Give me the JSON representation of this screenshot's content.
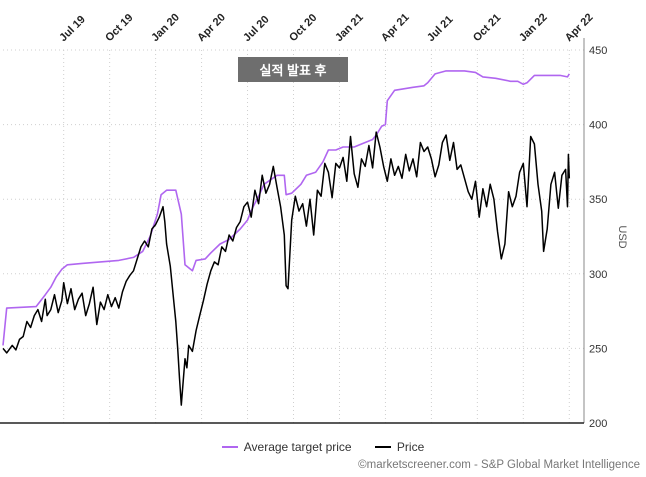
{
  "chart_data": {
    "type": "line",
    "yaxis_title": "USD",
    "ylim": [
      200,
      450
    ],
    "yticks": [
      200,
      250,
      300,
      350,
      400,
      450
    ],
    "grid": true,
    "legend_position": "bottom",
    "annotation": "실적 발표 후",
    "xticks": [
      {
        "label": "Jul 19",
        "t": 2019.5
      },
      {
        "label": "Oct 19",
        "t": 2019.75
      },
      {
        "label": "Jan 20",
        "t": 2020.0
      },
      {
        "label": "Apr 20",
        "t": 2020.25
      },
      {
        "label": "Jul 20",
        "t": 2020.5
      },
      {
        "label": "Oct 20",
        "t": 2020.75
      },
      {
        "label": "Jan 21",
        "t": 2021.0
      },
      {
        "label": "Apr 21",
        "t": 2021.25
      },
      {
        "label": "Jul 21",
        "t": 2021.5
      },
      {
        "label": "Oct 21",
        "t": 2021.75
      },
      {
        "label": "Jan 22",
        "t": 2022.0
      },
      {
        "label": "Apr 22",
        "t": 2022.25
      }
    ],
    "series": [
      {
        "name": "Average target price",
        "color": "#b066f0",
        "points": [
          [
            2019.17,
            252
          ],
          [
            2019.19,
            277
          ],
          [
            2019.35,
            278
          ],
          [
            2019.4,
            286
          ],
          [
            2019.43,
            291
          ],
          [
            2019.46,
            298
          ],
          [
            2019.49,
            303
          ],
          [
            2019.52,
            306
          ],
          [
            2019.6,
            307
          ],
          [
            2019.7,
            308
          ],
          [
            2019.8,
            309
          ],
          [
            2019.88,
            311
          ],
          [
            2019.93,
            315
          ],
          [
            2019.97,
            325
          ],
          [
            2020.01,
            340
          ],
          [
            2020.03,
            353
          ],
          [
            2020.06,
            356
          ],
          [
            2020.11,
            356
          ],
          [
            2020.14,
            340
          ],
          [
            2020.16,
            306
          ],
          [
            2020.2,
            302
          ],
          [
            2020.22,
            309
          ],
          [
            2020.27,
            310
          ],
          [
            2020.3,
            314
          ],
          [
            2020.35,
            320
          ],
          [
            2020.4,
            323
          ],
          [
            2020.46,
            330
          ],
          [
            2020.5,
            336
          ],
          [
            2020.53,
            345
          ],
          [
            2020.56,
            352
          ],
          [
            2020.59,
            360
          ],
          [
            2020.66,
            366
          ],
          [
            2020.7,
            366
          ],
          [
            2020.71,
            353
          ],
          [
            2020.74,
            354
          ],
          [
            2020.79,
            360
          ],
          [
            2020.82,
            366
          ],
          [
            2020.87,
            368
          ],
          [
            2020.91,
            375
          ],
          [
            2020.94,
            383
          ],
          [
            2020.98,
            383
          ],
          [
            2021.02,
            385
          ],
          [
            2021.08,
            385
          ],
          [
            2021.12,
            387
          ],
          [
            2021.18,
            390
          ],
          [
            2021.2,
            393
          ],
          [
            2021.23,
            399
          ],
          [
            2021.25,
            400
          ],
          [
            2021.26,
            416
          ],
          [
            2021.3,
            423
          ],
          [
            2021.4,
            425
          ],
          [
            2021.46,
            426
          ],
          [
            2021.48,
            428
          ],
          [
            2021.52,
            434
          ],
          [
            2021.58,
            436
          ],
          [
            2021.68,
            436
          ],
          [
            2021.74,
            435
          ],
          [
            2021.78,
            432
          ],
          [
            2021.85,
            431
          ],
          [
            2021.93,
            429
          ],
          [
            2021.97,
            429
          ],
          [
            2022.0,
            427
          ],
          [
            2022.02,
            428
          ],
          [
            2022.06,
            433
          ],
          [
            2022.2,
            433
          ],
          [
            2022.24,
            432
          ],
          [
            2022.25,
            434
          ]
        ]
      },
      {
        "name": "Price",
        "color": "#000000",
        "points": [
          [
            2019.17,
            250
          ],
          [
            2019.19,
            247
          ],
          [
            2019.22,
            252
          ],
          [
            2019.24,
            249
          ],
          [
            2019.26,
            256
          ],
          [
            2019.28,
            258
          ],
          [
            2019.3,
            268
          ],
          [
            2019.32,
            264
          ],
          [
            2019.34,
            272
          ],
          [
            2019.36,
            276
          ],
          [
            2019.38,
            268
          ],
          [
            2019.4,
            283
          ],
          [
            2019.41,
            272
          ],
          [
            2019.43,
            276
          ],
          [
            2019.45,
            286
          ],
          [
            2019.47,
            274
          ],
          [
            2019.49,
            282
          ],
          [
            2019.5,
            294
          ],
          [
            2019.52,
            280
          ],
          [
            2019.54,
            290
          ],
          [
            2019.56,
            276
          ],
          [
            2019.58,
            283
          ],
          [
            2019.6,
            287
          ],
          [
            2019.62,
            272
          ],
          [
            2019.64,
            280
          ],
          [
            2019.66,
            291
          ],
          [
            2019.68,
            266
          ],
          [
            2019.7,
            281
          ],
          [
            2019.72,
            276
          ],
          [
            2019.74,
            286
          ],
          [
            2019.76,
            278
          ],
          [
            2019.78,
            284
          ],
          [
            2019.8,
            277
          ],
          [
            2019.82,
            288
          ],
          [
            2019.84,
            295
          ],
          [
            2019.86,
            299
          ],
          [
            2019.88,
            302
          ],
          [
            2019.9,
            310
          ],
          [
            2019.92,
            318
          ],
          [
            2019.94,
            322
          ],
          [
            2019.96,
            318
          ],
          [
            2019.98,
            330
          ],
          [
            2020.0,
            333
          ],
          [
            2020.02,
            338
          ],
          [
            2020.04,
            345
          ],
          [
            2020.05,
            335
          ],
          [
            2020.06,
            320
          ],
          [
            2020.08,
            305
          ],
          [
            2020.1,
            280
          ],
          [
            2020.11,
            268
          ],
          [
            2020.12,
            250
          ],
          [
            2020.13,
            230
          ],
          [
            2020.14,
            212
          ],
          [
            2020.15,
            228
          ],
          [
            2020.16,
            243
          ],
          [
            2020.17,
            237
          ],
          [
            2020.18,
            252
          ],
          [
            2020.2,
            248
          ],
          [
            2020.22,
            262
          ],
          [
            2020.24,
            272
          ],
          [
            2020.26,
            282
          ],
          [
            2020.28,
            293
          ],
          [
            2020.3,
            302
          ],
          [
            2020.32,
            308
          ],
          [
            2020.34,
            306
          ],
          [
            2020.36,
            318
          ],
          [
            2020.38,
            315
          ],
          [
            2020.4,
            326
          ],
          [
            2020.42,
            322
          ],
          [
            2020.44,
            331
          ],
          [
            2020.46,
            335
          ],
          [
            2020.48,
            345
          ],
          [
            2020.5,
            348
          ],
          [
            2020.52,
            338
          ],
          [
            2020.54,
            356
          ],
          [
            2020.56,
            347
          ],
          [
            2020.58,
            366
          ],
          [
            2020.6,
            354
          ],
          [
            2020.62,
            360
          ],
          [
            2020.64,
            372
          ],
          [
            2020.66,
            358
          ],
          [
            2020.68,
            345
          ],
          [
            2020.7,
            326
          ],
          [
            2020.71,
            292
          ],
          [
            2020.72,
            290
          ],
          [
            2020.74,
            336
          ],
          [
            2020.76,
            352
          ],
          [
            2020.78,
            342
          ],
          [
            2020.8,
            347
          ],
          [
            2020.82,
            332
          ],
          [
            2020.84,
            350
          ],
          [
            2020.86,
            326
          ],
          [
            2020.88,
            356
          ],
          [
            2020.9,
            352
          ],
          [
            2020.92,
            374
          ],
          [
            2020.94,
            368
          ],
          [
            2020.96,
            351
          ],
          [
            2020.98,
            374
          ],
          [
            2021.0,
            371
          ],
          [
            2021.02,
            378
          ],
          [
            2021.04,
            362
          ],
          [
            2021.06,
            392
          ],
          [
            2021.08,
            367
          ],
          [
            2021.1,
            358
          ],
          [
            2021.12,
            377
          ],
          [
            2021.14,
            372
          ],
          [
            2021.16,
            386
          ],
          [
            2021.18,
            371
          ],
          [
            2021.2,
            395
          ],
          [
            2021.22,
            385
          ],
          [
            2021.24,
            372
          ],
          [
            2021.26,
            362
          ],
          [
            2021.28,
            377
          ],
          [
            2021.3,
            366
          ],
          [
            2021.32,
            372
          ],
          [
            2021.34,
            364
          ],
          [
            2021.36,
            380
          ],
          [
            2021.38,
            369
          ],
          [
            2021.4,
            377
          ],
          [
            2021.42,
            365
          ],
          [
            2021.44,
            388
          ],
          [
            2021.46,
            382
          ],
          [
            2021.48,
            385
          ],
          [
            2021.5,
            377
          ],
          [
            2021.52,
            365
          ],
          [
            2021.54,
            373
          ],
          [
            2021.56,
            388
          ],
          [
            2021.58,
            393
          ],
          [
            2021.6,
            376
          ],
          [
            2021.62,
            388
          ],
          [
            2021.64,
            370
          ],
          [
            2021.66,
            373
          ],
          [
            2021.68,
            364
          ],
          [
            2021.7,
            355
          ],
          [
            2021.72,
            350
          ],
          [
            2021.74,
            362
          ],
          [
            2021.76,
            338
          ],
          [
            2021.78,
            357
          ],
          [
            2021.8,
            345
          ],
          [
            2021.82,
            360
          ],
          [
            2021.84,
            350
          ],
          [
            2021.86,
            328
          ],
          [
            2021.88,
            310
          ],
          [
            2021.9,
            320
          ],
          [
            2021.92,
            355
          ],
          [
            2021.94,
            345
          ],
          [
            2021.96,
            352
          ],
          [
            2021.98,
            368
          ],
          [
            2022.0,
            374
          ],
          [
            2022.02,
            345
          ],
          [
            2022.04,
            392
          ],
          [
            2022.06,
            387
          ],
          [
            2022.08,
            360
          ],
          [
            2022.1,
            342
          ],
          [
            2022.11,
            315
          ],
          [
            2022.13,
            330
          ],
          [
            2022.15,
            360
          ],
          [
            2022.17,
            368
          ],
          [
            2022.19,
            344
          ],
          [
            2022.21,
            366
          ],
          [
            2022.23,
            370
          ],
          [
            2022.24,
            345
          ],
          [
            2022.245,
            380
          ],
          [
            2022.25,
            364
          ]
        ]
      }
    ]
  },
  "credit": "©marketscreener.com - S&P Global Market Intelligence"
}
